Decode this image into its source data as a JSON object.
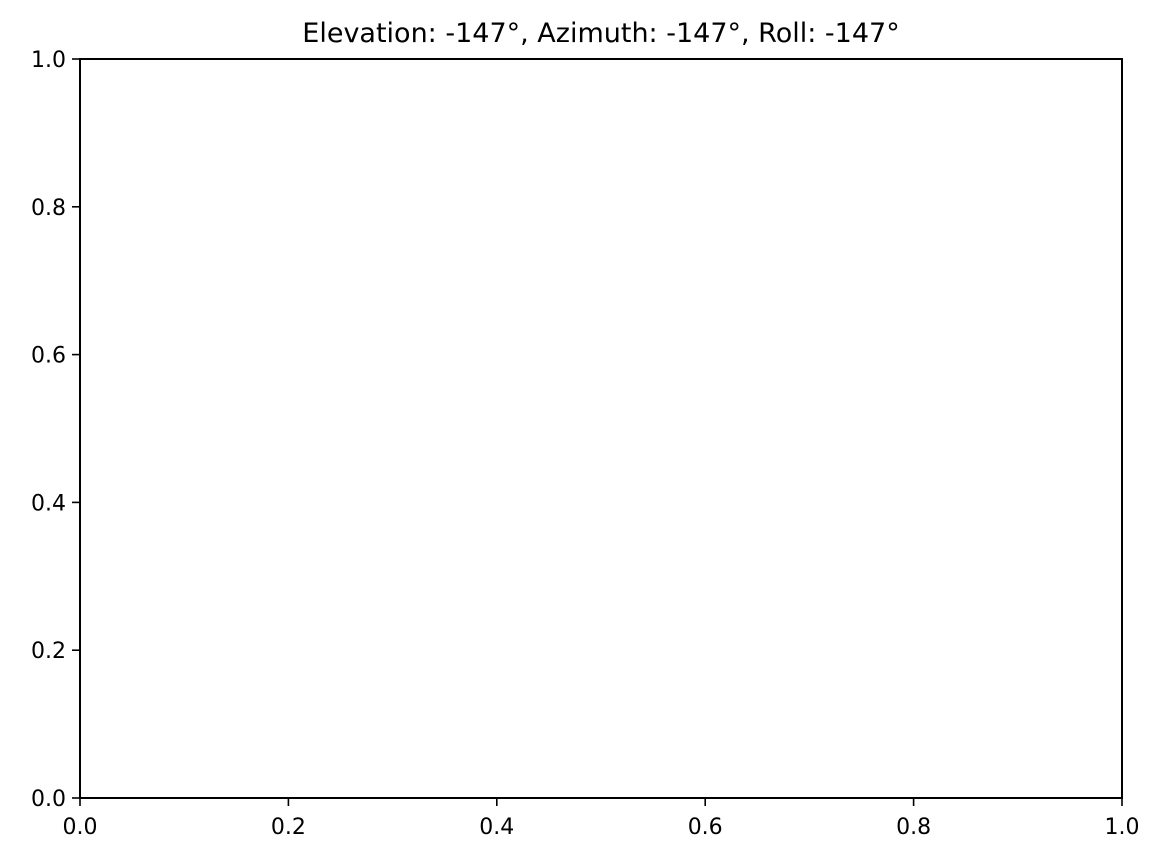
{
  "chart_data": {
    "type": "scatter",
    "title": "Elevation: -147°, Azimuth: -147°, Roll: -147°",
    "xlabel": "",
    "ylabel": "",
    "xlim": [
      0.0,
      1.0
    ],
    "ylim": [
      0.0,
      1.0
    ],
    "x_ticks": [
      0.0,
      0.2,
      0.4,
      0.6,
      0.8,
      1.0
    ],
    "y_ticks": [
      0.0,
      0.2,
      0.4,
      0.6,
      0.8,
      1.0
    ],
    "x_tick_labels": [
      "0.0",
      "0.2",
      "0.4",
      "0.6",
      "0.8",
      "1.0"
    ],
    "y_tick_labels": [
      "0.0",
      "0.2",
      "0.4",
      "0.6",
      "0.8",
      "1.0"
    ],
    "grid": false,
    "series": []
  }
}
